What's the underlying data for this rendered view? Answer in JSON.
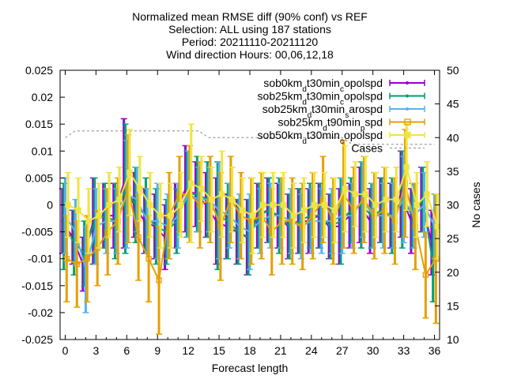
{
  "chart_data": {
    "type": "line",
    "title_lines": [
      "Normalized mean RMSE diff (90% conf) vs REF",
      "Selection: ALL using   187 stations",
      "Period: 20211110-20211120",
      "Wind direction   Hours: 00,06,12,18"
    ],
    "xlabel": "Forecast length",
    "ylabel": "",
    "y2label": "No cases",
    "xlim": [
      -0.5,
      36.5
    ],
    "ylim": [
      -0.025,
      0.025
    ],
    "y2lim": [
      10,
      50
    ],
    "xticks": [
      "0",
      "3",
      "6",
      "9",
      "12",
      "15",
      "18",
      "21",
      "24",
      "27",
      "30",
      "33",
      "36"
    ],
    "yticks": [
      "0.025",
      "0.02",
      "0.015",
      "0.01",
      "0.005",
      "0",
      "-0.005",
      "-0.01",
      "-0.015",
      "-0.02",
      "-0.025"
    ],
    "y2ticks": [
      "50",
      "45",
      "40",
      "35",
      "30",
      "25",
      "20",
      "15",
      "10"
    ],
    "x": [
      0,
      1,
      2,
      3,
      4,
      5,
      6,
      7,
      8,
      9,
      10,
      11,
      12,
      13,
      14,
      15,
      16,
      17,
      18,
      19,
      20,
      21,
      22,
      23,
      24,
      25,
      26,
      27,
      28,
      29,
      30,
      31,
      32,
      33,
      34,
      35,
      36
    ],
    "series": [
      {
        "name": "sob0km_dt30min_copolspd",
        "color": "#9400d3",
        "marker": "plus",
        "values": [
          -0.003,
          -0.006,
          -0.011,
          -0.003,
          -0.002,
          -0.002,
          0.004,
          0.0,
          -0.003,
          -0.004,
          -0.006,
          -0.002,
          0.003,
          0.002,
          0.0,
          -0.003,
          -0.004,
          -0.005,
          -0.006,
          -0.002,
          -0.001,
          -0.002,
          -0.004,
          -0.003,
          -0.003,
          -0.002,
          -0.004,
          -0.004,
          -0.002,
          0.0,
          -0.003,
          -0.001,
          -0.002,
          0.002,
          -0.003,
          0.001,
          -0.007
        ],
        "err": [
          0.006,
          0.005,
          0.005,
          0.008,
          0.006,
          0.006,
          0.012,
          0.006,
          0.006,
          0.006,
          0.006,
          0.006,
          0.008,
          0.006,
          0.006,
          0.008,
          0.006,
          0.006,
          0.007,
          0.006,
          0.006,
          0.006,
          0.006,
          0.006,
          0.006,
          0.006,
          0.006,
          0.007,
          0.006,
          0.007,
          0.006,
          0.006,
          0.006,
          0.008,
          0.006,
          0.006,
          0.006
        ]
      },
      {
        "name": "sob25km_dt30min_copolspd",
        "color": "#009e73",
        "marker": "x",
        "values": [
          -0.004,
          -0.007,
          -0.009,
          -0.003,
          -0.002,
          -0.003,
          0.003,
          0.0,
          -0.002,
          -0.004,
          -0.005,
          -0.003,
          0.002,
          0.002,
          0.001,
          -0.002,
          -0.003,
          -0.005,
          -0.006,
          -0.002,
          -0.001,
          -0.002,
          -0.004,
          -0.003,
          -0.002,
          -0.002,
          -0.004,
          -0.003,
          -0.001,
          0.0,
          -0.002,
          -0.001,
          -0.002,
          0.001,
          -0.002,
          0.001,
          -0.011
        ],
        "err": [
          0.008,
          0.006,
          0.006,
          0.008,
          0.006,
          0.007,
          0.012,
          0.007,
          0.007,
          0.007,
          0.006,
          0.006,
          0.008,
          0.007,
          0.007,
          0.01,
          0.007,
          0.006,
          0.007,
          0.006,
          0.006,
          0.007,
          0.006,
          0.006,
          0.006,
          0.006,
          0.006,
          0.008,
          0.006,
          0.008,
          0.006,
          0.006,
          0.007,
          0.009,
          0.006,
          0.006,
          0.007
        ]
      },
      {
        "name": "sob25km_dt30min_sarospd",
        "color": "#56b4e9",
        "marker": "star",
        "values": [
          -0.002,
          -0.005,
          -0.012,
          -0.004,
          -0.003,
          -0.003,
          0.002,
          0.001,
          -0.003,
          -0.003,
          -0.004,
          -0.002,
          0.002,
          0.001,
          0.001,
          -0.001,
          -0.002,
          -0.004,
          -0.005,
          -0.003,
          -0.002,
          -0.002,
          -0.003,
          -0.004,
          -0.003,
          -0.003,
          -0.003,
          -0.002,
          -0.002,
          0.001,
          -0.002,
          -0.002,
          -0.002,
          0.001,
          -0.002,
          0.0,
          -0.004
        ],
        "err": [
          0.007,
          0.006,
          0.008,
          0.007,
          0.006,
          0.006,
          0.01,
          0.006,
          0.006,
          0.007,
          0.006,
          0.006,
          0.008,
          0.006,
          0.006,
          0.009,
          0.006,
          0.006,
          0.007,
          0.006,
          0.006,
          0.006,
          0.006,
          0.006,
          0.006,
          0.006,
          0.006,
          0.007,
          0.006,
          0.007,
          0.006,
          0.006,
          0.006,
          0.008,
          0.006,
          0.006,
          0.006
        ]
      },
      {
        "name": "sob25km_dt90min_pspd",
        "color": "#e69f00",
        "marker": "square",
        "values": [
          -0.01,
          -0.011,
          -0.01,
          -0.008,
          -0.005,
          -0.003,
          0.003,
          -0.006,
          -0.01,
          -0.014,
          -0.002,
          0.002,
          0.002,
          0.0,
          0.001,
          -0.004,
          0.001,
          -0.002,
          -0.003,
          -0.002,
          -0.005,
          -0.003,
          -0.003,
          -0.004,
          -0.002,
          0.001,
          -0.003,
          0.002,
          -0.001,
          0.001,
          -0.002,
          -0.001,
          -0.003,
          0.004,
          -0.004,
          -0.013,
          -0.01
        ],
        "err": [
          0.008,
          0.008,
          0.008,
          0.007,
          0.008,
          0.008,
          0.01,
          0.008,
          0.008,
          0.01,
          0.008,
          0.007,
          0.009,
          0.008,
          0.008,
          0.01,
          0.008,
          0.008,
          0.008,
          0.008,
          0.008,
          0.008,
          0.008,
          0.008,
          0.008,
          0.008,
          0.008,
          0.01,
          0.008,
          0.008,
          0.008,
          0.008,
          0.008,
          0.01,
          0.008,
          0.008,
          0.012
        ]
      },
      {
        "name": "sob50km_dt30min_copolspd",
        "color": "#f0e442",
        "marker": "square-filled",
        "values": [
          0.0,
          -0.001,
          -0.003,
          -0.002,
          0.0,
          0.001,
          0.006,
          0.003,
          0.0,
          -0.002,
          -0.002,
          0.0,
          0.004,
          0.003,
          0.001,
          0.002,
          0.001,
          -0.001,
          -0.002,
          0.0,
          0.0,
          0.0,
          -0.002,
          -0.001,
          0.0,
          0.0,
          -0.001,
          0.003,
          0.002,
          0.002,
          0.0,
          0.001,
          0.001,
          0.007,
          0.0,
          0.002,
          -0.004
        ],
        "err": [
          0.006,
          0.006,
          0.006,
          0.006,
          0.006,
          0.006,
          0.008,
          0.006,
          0.006,
          0.006,
          0.006,
          0.006,
          0.011,
          0.006,
          0.006,
          0.008,
          0.006,
          0.006,
          0.007,
          0.006,
          0.006,
          0.006,
          0.006,
          0.006,
          0.006,
          0.006,
          0.006,
          0.008,
          0.006,
          0.007,
          0.006,
          0.006,
          0.006,
          0.008,
          0.006,
          0.006,
          0.006
        ]
      }
    ],
    "cases": {
      "name": "Cases",
      "color": "#a0a0a0",
      "axis": "y2",
      "values": [
        40,
        41,
        41,
        41,
        41,
        41,
        41,
        41,
        41,
        41,
        41,
        41,
        41,
        41,
        40,
        40,
        40,
        40,
        40,
        40,
        40,
        40,
        40,
        40,
        40,
        40,
        40,
        40,
        39,
        39,
        39,
        39,
        39,
        39,
        39,
        39,
        39
      ]
    },
    "legend_position": "top-right",
    "grid": false
  }
}
